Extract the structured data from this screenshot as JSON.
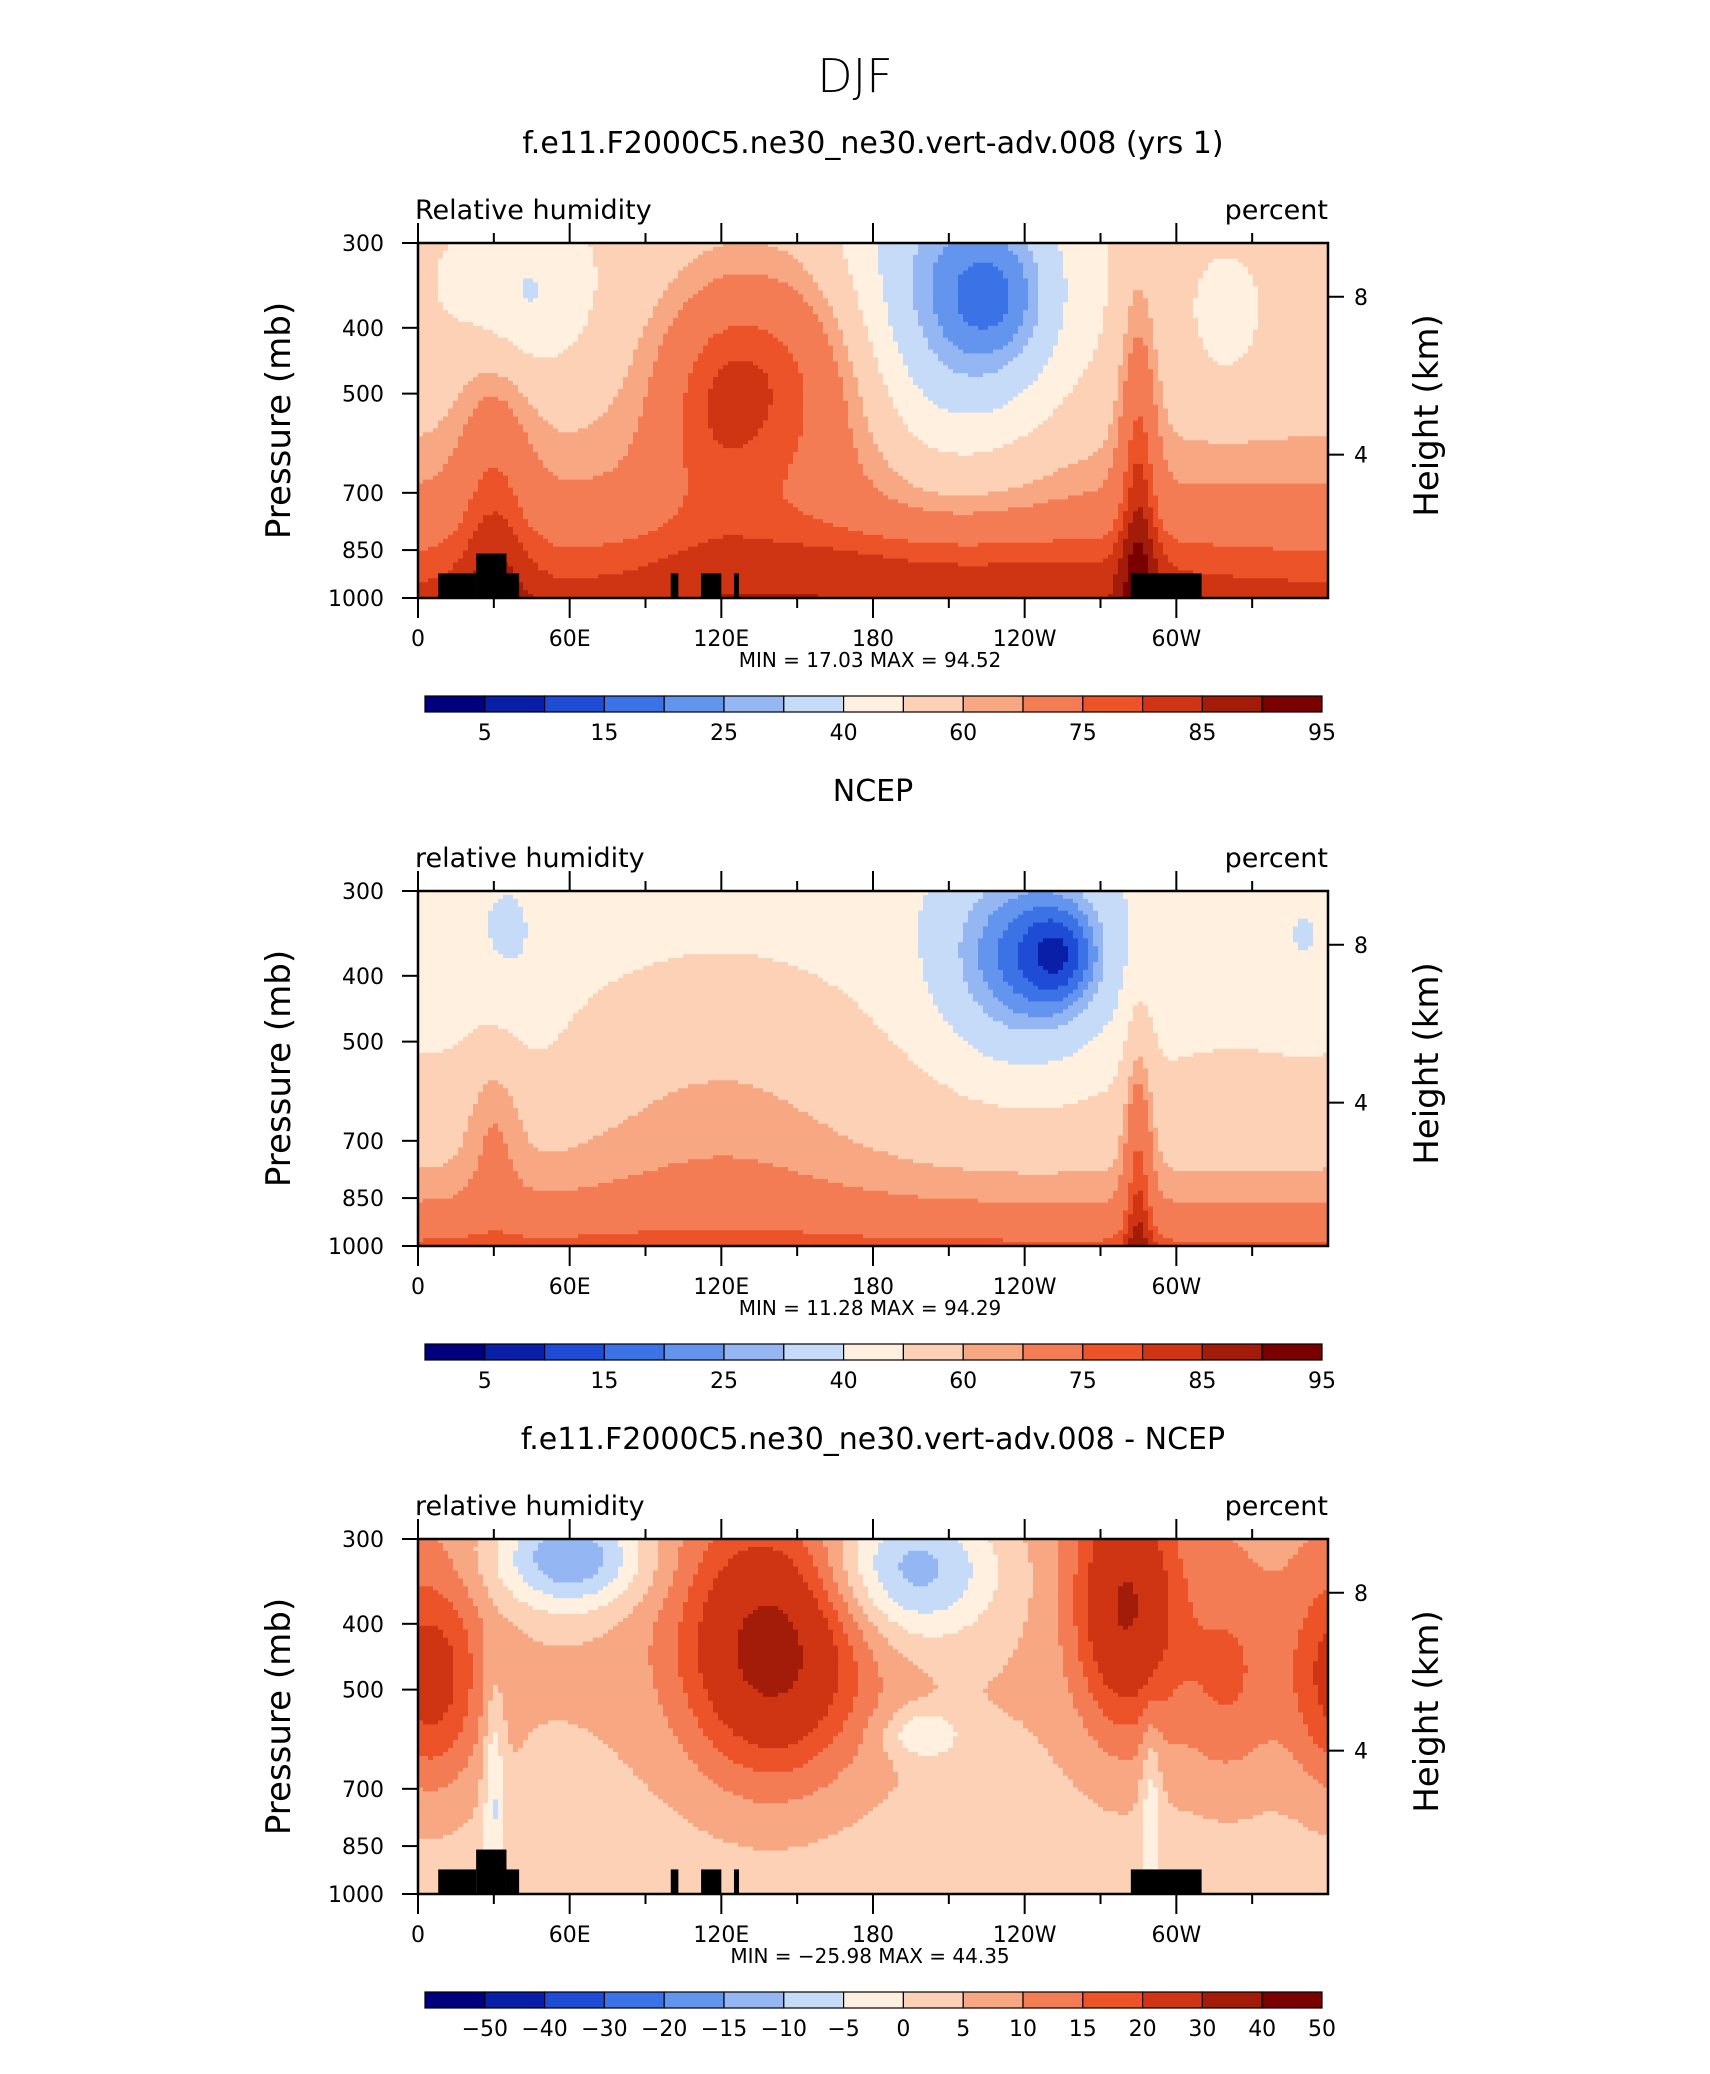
{
  "figure": {
    "title": "DJF"
  },
  "colors": {
    "palette": [
      "#00007f",
      "#0a1fa8",
      "#1f4cd4",
      "#3b73e6",
      "#6394ee",
      "#94b6f2",
      "#c6dbf8",
      "#fff0e0",
      "#fcd1b6",
      "#f8a783",
      "#f37c55",
      "#ec5328",
      "#cf3413",
      "#a31c0a",
      "#7a0000"
    ],
    "land_mask": "#000000"
  },
  "chart_data": [
    {
      "type": "contour",
      "title": "f.e11.F2000C5.ne30_ne30.vert-adv.008 (yrs 1)",
      "left_label": "Relative humidity",
      "right_label": "percent",
      "ylabel": "Pressure (mb)",
      "y2label": "Height (km)",
      "x_ticks": [
        "0",
        "60E",
        "120E",
        "180",
        "120W",
        "60W"
      ],
      "x_range": [
        0,
        360
      ],
      "y_ticks": [
        "300",
        "400",
        "500",
        "700",
        "850",
        "1000"
      ],
      "y_range": [
        1000,
        300
      ],
      "y_scale": "log",
      "y2_ticks": [
        "8",
        "4"
      ],
      "stats": {
        "min_label": "MIN =",
        "min": "17.03",
        "max_label": "MAX =",
        "max": "94.52"
      },
      "colorbar_labels": [
        "5",
        "15",
        "25",
        "40",
        "60",
        "75",
        "85",
        "95"
      ],
      "colorbar_levels": [
        5,
        10,
        15,
        20,
        25,
        30,
        40,
        50,
        60,
        65,
        75,
        80,
        85,
        90,
        95
      ],
      "field": "model",
      "land_mask": true
    },
    {
      "type": "contour",
      "title": "NCEP",
      "left_label": "relative humidity",
      "right_label": "percent",
      "ylabel": "Pressure (mb)",
      "y2label": "Height (km)",
      "x_ticks": [
        "0",
        "60E",
        "120E",
        "180",
        "120W",
        "60W"
      ],
      "x_range": [
        0,
        360
      ],
      "y_ticks": [
        "300",
        "400",
        "500",
        "700",
        "850",
        "1000"
      ],
      "y_range": [
        1000,
        300
      ],
      "y_scale": "log",
      "y2_ticks": [
        "8",
        "4"
      ],
      "stats": {
        "min_label": "MIN =",
        "min": "11.28",
        "max_label": "MAX =",
        "max": "94.29"
      },
      "colorbar_labels": [
        "5",
        "15",
        "25",
        "40",
        "60",
        "75",
        "85",
        "95"
      ],
      "colorbar_levels": [
        5,
        10,
        15,
        20,
        25,
        30,
        40,
        50,
        60,
        65,
        75,
        80,
        85,
        90,
        95
      ],
      "field": "obs",
      "land_mask": false
    },
    {
      "type": "contour",
      "title": "f.e11.F2000C5.ne30_ne30.vert-adv.008 - NCEP",
      "left_label": "relative humidity",
      "right_label": "percent",
      "ylabel": "Pressure (mb)",
      "y2label": "Height (km)",
      "x_ticks": [
        "0",
        "60E",
        "120E",
        "180",
        "120W",
        "60W"
      ],
      "x_range": [
        0,
        360
      ],
      "y_ticks": [
        "300",
        "400",
        "500",
        "700",
        "850",
        "1000"
      ],
      "y_range": [
        1000,
        300
      ],
      "y_scale": "log",
      "y2_ticks": [
        "8",
        "4"
      ],
      "stats": {
        "min_label": "MIN =",
        "min": "−25.98",
        "max_label": "MAX =",
        "max": "44.35"
      },
      "colorbar_labels": [
        "−50",
        "−40",
        "−30",
        "−20",
        "−15",
        "−10",
        "−5",
        "0",
        "5",
        "10",
        "15",
        "20",
        "30",
        "40",
        "50"
      ],
      "colorbar_levels": [
        -50,
        -40,
        -30,
        -20,
        -15,
        -10,
        -5,
        0,
        5,
        10,
        15,
        20,
        30,
        40,
        50
      ],
      "field": "diff",
      "land_mask": true
    }
  ]
}
